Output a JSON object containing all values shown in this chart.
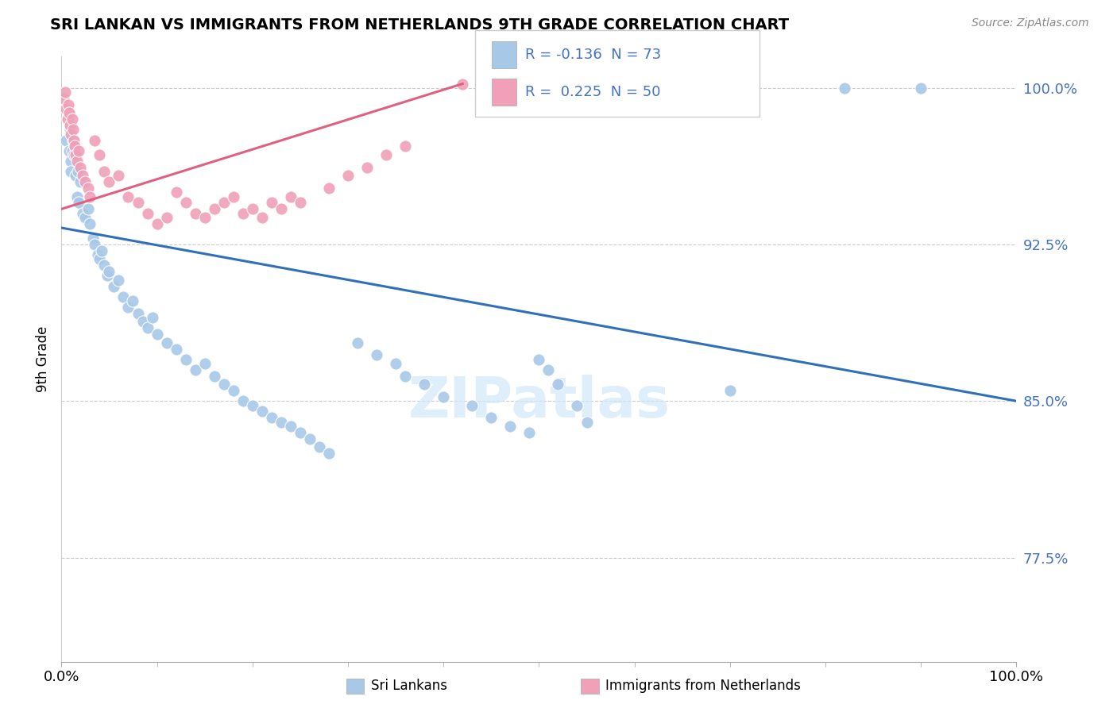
{
  "title": "SRI LANKAN VS IMMIGRANTS FROM NETHERLANDS 9TH GRADE CORRELATION CHART",
  "source": "Source: ZipAtlas.com",
  "ylabel": "9th Grade",
  "blue_color": "#a8c8e8",
  "pink_color": "#f0a0b8",
  "blue_line_color": "#3070b8",
  "pink_line_color": "#e06080",
  "background_color": "#ffffff",
  "grid_color": "#cccccc",
  "ytick_color": "#4472c4",
  "watermark_color": "#d0e8f8",
  "xlim": [
    0.0,
    1.0
  ],
  "ylim": [
    0.725,
    1.015
  ],
  "yticks": [
    0.775,
    0.85,
    0.925,
    1.0
  ],
  "ytick_labels": [
    "77.5%",
    "85.0%",
    "92.5%",
    "100.0%"
  ],
  "xtick_left": "0.0%",
  "xtick_right": "100.0%",
  "blue_line_x": [
    0.0,
    1.0
  ],
  "blue_line_y": [
    0.933,
    0.85
  ],
  "pink_line_x": [
    0.0,
    0.42
  ],
  "pink_line_y": [
    0.942,
    1.002
  ],
  "legend_text_blue": "R = -0.136  N = 73",
  "legend_text_pink": "R =  0.225  N = 50",
  "bottom_label_left": "Sri Lankans",
  "bottom_label_right": "Immigrants from Netherlands",
  "blue_x": [
    0.005,
    0.007,
    0.008,
    0.009,
    0.01,
    0.01,
    0.011,
    0.012,
    0.013,
    0.014,
    0.015,
    0.016,
    0.017,
    0.018,
    0.02,
    0.022,
    0.025,
    0.028,
    0.03,
    0.033,
    0.035,
    0.038,
    0.04,
    0.042,
    0.045,
    0.048,
    0.05,
    0.055,
    0.06,
    0.065,
    0.07,
    0.075,
    0.08,
    0.085,
    0.09,
    0.095,
    0.1,
    0.11,
    0.12,
    0.13,
    0.14,
    0.15,
    0.16,
    0.17,
    0.18,
    0.19,
    0.2,
    0.21,
    0.22,
    0.23,
    0.24,
    0.25,
    0.26,
    0.27,
    0.28,
    0.31,
    0.33,
    0.35,
    0.36,
    0.38,
    0.4,
    0.43,
    0.45,
    0.47,
    0.49,
    0.5,
    0.51,
    0.52,
    0.54,
    0.55,
    0.7,
    0.82,
    0.9
  ],
  "blue_y": [
    0.975,
    0.988,
    0.97,
    0.98,
    0.965,
    0.96,
    0.97,
    0.975,
    0.968,
    0.972,
    0.958,
    0.948,
    0.96,
    0.945,
    0.955,
    0.94,
    0.938,
    0.942,
    0.935,
    0.928,
    0.925,
    0.92,
    0.918,
    0.922,
    0.915,
    0.91,
    0.912,
    0.905,
    0.908,
    0.9,
    0.895,
    0.898,
    0.892,
    0.888,
    0.885,
    0.89,
    0.882,
    0.878,
    0.875,
    0.87,
    0.865,
    0.868,
    0.862,
    0.858,
    0.855,
    0.85,
    0.848,
    0.845,
    0.842,
    0.84,
    0.838,
    0.835,
    0.832,
    0.828,
    0.825,
    0.878,
    0.872,
    0.868,
    0.862,
    0.858,
    0.852,
    0.848,
    0.842,
    0.838,
    0.835,
    0.87,
    0.865,
    0.858,
    0.848,
    0.84,
    0.855,
    1.0,
    1.0
  ],
  "pink_x": [
    0.002,
    0.004,
    0.005,
    0.006,
    0.007,
    0.008,
    0.009,
    0.01,
    0.011,
    0.012,
    0.013,
    0.014,
    0.015,
    0.016,
    0.018,
    0.02,
    0.022,
    0.025,
    0.028,
    0.03,
    0.035,
    0.04,
    0.045,
    0.05,
    0.06,
    0.07,
    0.08,
    0.09,
    0.1,
    0.11,
    0.12,
    0.13,
    0.14,
    0.15,
    0.16,
    0.17,
    0.18,
    0.19,
    0.2,
    0.21,
    0.22,
    0.23,
    0.24,
    0.25,
    0.28,
    0.3,
    0.32,
    0.34,
    0.36,
    0.42
  ],
  "pink_y": [
    0.995,
    0.998,
    0.99,
    0.985,
    0.992,
    0.988,
    0.982,
    0.978,
    0.985,
    0.98,
    0.975,
    0.972,
    0.968,
    0.965,
    0.97,
    0.962,
    0.958,
    0.955,
    0.952,
    0.948,
    0.975,
    0.968,
    0.96,
    0.955,
    0.958,
    0.948,
    0.945,
    0.94,
    0.935,
    0.938,
    0.95,
    0.945,
    0.94,
    0.938,
    0.942,
    0.945,
    0.948,
    0.94,
    0.942,
    0.938,
    0.945,
    0.942,
    0.948,
    0.945,
    0.952,
    0.958,
    0.962,
    0.968,
    0.972,
    1.002
  ]
}
